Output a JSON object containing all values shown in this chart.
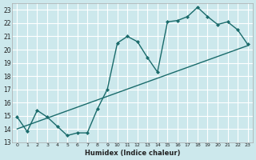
{
  "xlabel": "Humidex (Indice chaleur)",
  "ylabel": "",
  "bg_color": "#cce8ec",
  "grid_color": "#ffffff",
  "line_color": "#1a6b6b",
  "xlim": [
    -0.5,
    23.5
  ],
  "ylim": [
    13,
    23.5
  ],
  "yticks": [
    13,
    14,
    15,
    16,
    17,
    18,
    19,
    20,
    21,
    22,
    23
  ],
  "xticks": [
    0,
    1,
    2,
    3,
    4,
    5,
    6,
    7,
    8,
    9,
    10,
    11,
    12,
    13,
    14,
    15,
    16,
    17,
    18,
    19,
    20,
    21,
    22,
    23
  ],
  "hourly_x": [
    0,
    1,
    2,
    3,
    4,
    5,
    6,
    7,
    8,
    9,
    10,
    11,
    12,
    13,
    14,
    15,
    16,
    17,
    18,
    19,
    20,
    21,
    22,
    23
  ],
  "hourly_y": [
    14.9,
    13.8,
    15.4,
    14.9,
    14.2,
    13.5,
    13.7,
    13.7,
    15.5,
    17.0,
    20.5,
    21.0,
    20.6,
    19.4,
    18.3,
    22.1,
    22.2,
    22.5,
    23.2,
    22.5,
    21.9,
    22.1,
    21.5,
    20.4
  ],
  "trend_x": [
    0,
    23
  ],
  "trend_y": [
    14.0,
    20.3
  ]
}
